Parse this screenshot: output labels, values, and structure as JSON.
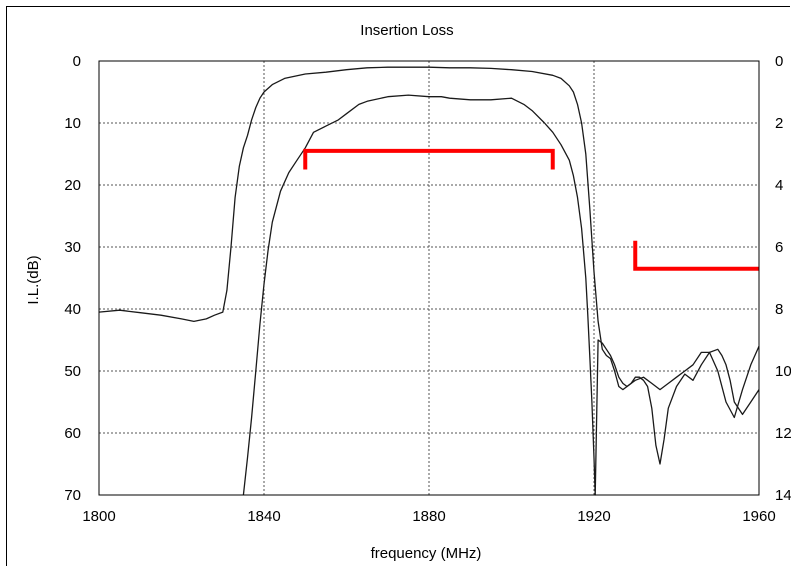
{
  "chart_data": {
    "type": "line",
    "title": "Insertion Loss",
    "xlabel": "frequency (MHz)",
    "ylabel": "I.L.(dB)",
    "xlim": [
      1800,
      1960
    ],
    "ylim": [
      0,
      70
    ],
    "y_inverted": true,
    "y2lim": [
      0,
      14
    ],
    "xticks": [
      1800,
      1840,
      1880,
      1920,
      1960
    ],
    "yticks": [
      0,
      10,
      20,
      30,
      40,
      50,
      60,
      70
    ],
    "y2ticks": [
      0,
      2,
      4,
      6,
      8,
      10,
      12,
      14
    ],
    "grid": true,
    "colors": {
      "curve": "#1a1a1a",
      "spec": "#ff0000",
      "grid": "#555555"
    },
    "series": [
      {
        "axis": "left",
        "x": [
          1800,
          1805,
          1810,
          1815,
          1820,
          1823,
          1826,
          1828,
          1830,
          1831,
          1832,
          1833,
          1834,
          1835,
          1836,
          1837,
          1838,
          1839,
          1840,
          1842,
          1845,
          1850,
          1855,
          1860,
          1865,
          1870,
          1875,
          1880,
          1885,
          1890,
          1895,
          1900,
          1905,
          1910,
          1912,
          1914,
          1915,
          1916,
          1917,
          1918,
          1919,
          1920,
          1921,
          1922,
          1923,
          1924,
          1925,
          1926,
          1927,
          1928,
          1930,
          1932,
          1934,
          1936,
          1938,
          1940,
          1942,
          1944,
          1946,
          1948,
          1950,
          1952,
          1954,
          1956,
          1958,
          1960
        ],
        "y": [
          40.5,
          40.2,
          40.6,
          41,
          41.6,
          42,
          41.6,
          41,
          40.5,
          37,
          30,
          22,
          17,
          14,
          12,
          9.5,
          7.5,
          6,
          5,
          3.8,
          2.8,
          2.1,
          1.8,
          1.4,
          1.1,
          1,
          1,
          1,
          1.1,
          1.1,
          1.2,
          1.4,
          1.7,
          2.3,
          2.8,
          4,
          5,
          7,
          10,
          15,
          24,
          34,
          42,
          46.5,
          47.5,
          48,
          50,
          52.5,
          53,
          52.5,
          51.5,
          51,
          52,
          53,
          52,
          51,
          50,
          49,
          47,
          47,
          50,
          55,
          57.5,
          53,
          49,
          46
        ]
      },
      {
        "axis": "right",
        "x": [
          1835,
          1836,
          1837,
          1838,
          1839,
          1840,
          1841,
          1842,
          1844,
          1846,
          1848,
          1850,
          1852,
          1855,
          1858,
          1860,
          1863,
          1865,
          1870,
          1875,
          1880,
          1883,
          1885,
          1890,
          1895,
          1900,
          1903,
          1905,
          1908,
          1910,
          1912,
          1914,
          1915,
          1916,
          1917,
          1918,
          1918.5,
          1919,
          1919.5,
          1920,
          1920.3,
          1921,
          1922,
          1923,
          1924,
          1925,
          1926,
          1927,
          1928,
          1929,
          1930,
          1931,
          1932,
          1933,
          1934,
          1935,
          1936,
          1937,
          1938,
          1940,
          1942,
          1944,
          1946,
          1948,
          1950,
          1951,
          1952,
          1953,
          1954,
          1956,
          1958,
          1960
        ],
        "y": [
          14,
          12.8,
          11.5,
          10,
          8.5,
          7.2,
          6.1,
          5.2,
          4.2,
          3.6,
          3.2,
          2.8,
          2.3,
          2.1,
          1.9,
          1.7,
          1.4,
          1.3,
          1.15,
          1.1,
          1.15,
          1.15,
          1.2,
          1.25,
          1.25,
          1.2,
          1.4,
          1.6,
          2.0,
          2.3,
          2.7,
          3.2,
          3.7,
          4.4,
          5.4,
          7.0,
          8.2,
          9.6,
          11,
          12.8,
          14,
          9.0,
          9.1,
          9.3,
          9.5,
          9.8,
          10.2,
          10.4,
          10.5,
          10.4,
          10.2,
          10.2,
          10.3,
          10.5,
          11.2,
          12.4,
          13,
          12.2,
          11.2,
          10.5,
          10.1,
          10.3,
          9.8,
          9.4,
          9.3,
          9.5,
          9.8,
          10.3,
          11.0,
          11.4,
          11.0,
          10.6
        ]
      }
    ],
    "spec_lines": [
      {
        "axis": "left",
        "x": [
          1850,
          1910
        ],
        "y": 14.5,
        "tick_to": 17.5
      },
      {
        "axis": "left",
        "x": [
          1930,
          1960
        ],
        "y": 33.5,
        "tick_to": 29
      }
    ]
  }
}
